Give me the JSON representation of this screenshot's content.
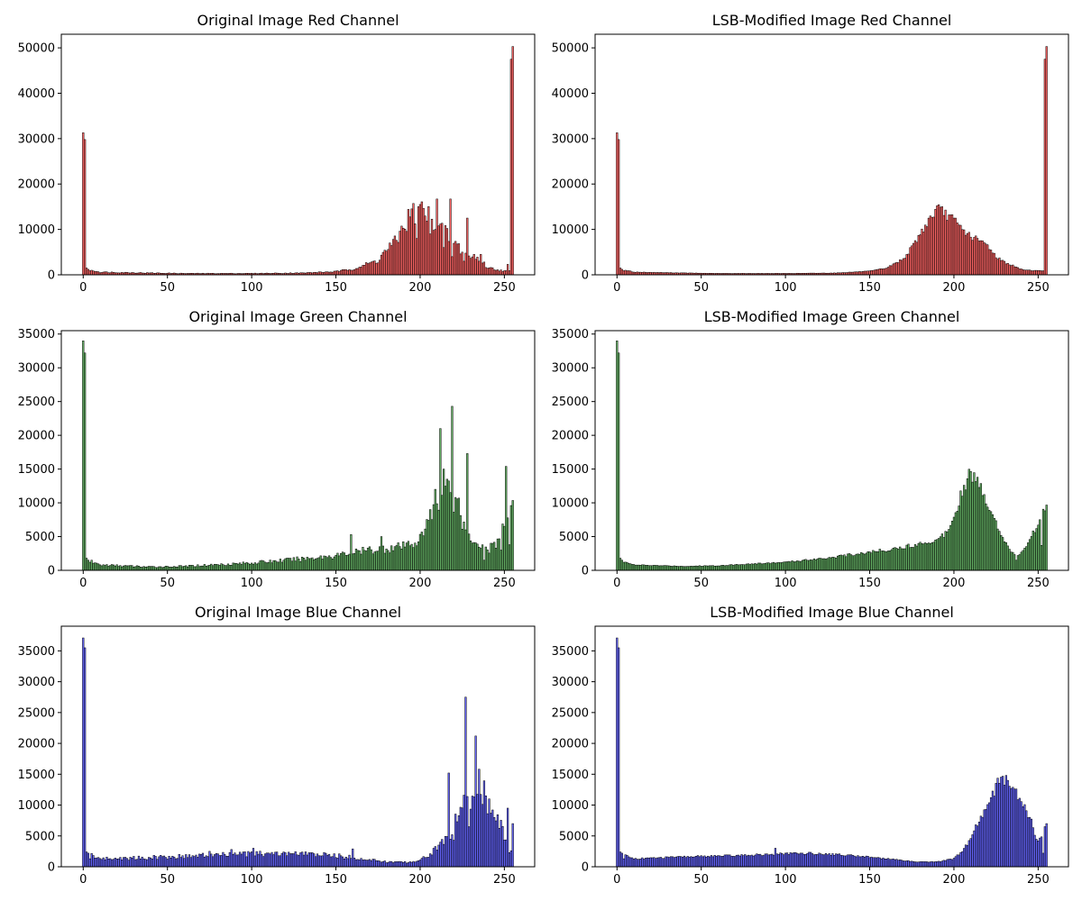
{
  "chart_data": [
    {
      "type": "bar",
      "title": "Original Image Red Channel",
      "channel": "red",
      "variant": "original",
      "color": "#ff0000",
      "xlim": [
        -13,
        268
      ],
      "ylim": [
        0,
        53000
      ],
      "xticks": [
        0,
        50,
        100,
        150,
        200,
        250
      ],
      "yticks": [
        0,
        10000,
        20000,
        30000,
        40000,
        50000
      ],
      "xlabel": "",
      "ylabel": "",
      "spikes": [
        [
          0,
          31300
        ],
        [
          1,
          29800
        ],
        [
          2,
          1500
        ],
        [
          3,
          1200
        ],
        [
          4,
          900
        ],
        [
          5,
          1000
        ],
        [
          254,
          47500
        ],
        [
          255,
          50300
        ]
      ],
      "anchors": [
        [
          3,
          1200
        ],
        [
          10,
          600
        ],
        [
          40,
          400
        ],
        [
          60,
          300
        ],
        [
          100,
          300
        ],
        [
          130,
          400
        ],
        [
          150,
          700
        ],
        [
          160,
          1300
        ],
        [
          170,
          2500
        ],
        [
          175,
          3200
        ],
        [
          180,
          5500
        ],
        [
          185,
          7000
        ],
        [
          190,
          10500
        ],
        [
          195,
          13500
        ],
        [
          200,
          14500
        ],
        [
          205,
          13000
        ],
        [
          210,
          11500
        ],
        [
          215,
          9000
        ],
        [
          220,
          7500
        ],
        [
          225,
          5000
        ],
        [
          230,
          3800
        ],
        [
          235,
          3500
        ],
        [
          240,
          1600
        ],
        [
          245,
          1200
        ],
        [
          250,
          800
        ],
        [
          253,
          900
        ]
      ],
      "overrides": [
        [
          200,
          15500
        ],
        [
          210,
          16700
        ],
        [
          218,
          16700
        ],
        [
          228,
          12500
        ],
        [
          206,
          9000
        ],
        [
          214,
          6000
        ],
        [
          219,
          4000
        ],
        [
          226,
          3000
        ],
        [
          198,
          8000
        ],
        [
          209,
          10000
        ],
        [
          232,
          4500
        ],
        [
          236,
          4500
        ],
        [
          252,
          2300
        ]
      ]
    },
    {
      "type": "bar",
      "title": "LSB-Modified Image Red Channel",
      "channel": "red",
      "variant": "lsb",
      "color": "#ff0000",
      "xlim": [
        -13,
        268
      ],
      "ylim": [
        0,
        53000
      ],
      "xticks": [
        0,
        50,
        100,
        150,
        200,
        250
      ],
      "yticks": [
        0,
        10000,
        20000,
        30000,
        40000,
        50000
      ],
      "xlabel": "",
      "ylabel": "",
      "spikes": [
        [
          0,
          31300
        ],
        [
          1,
          29800
        ],
        [
          2,
          1500
        ],
        [
          3,
          1200
        ],
        [
          4,
          900
        ],
        [
          5,
          1000
        ],
        [
          254,
          47500
        ],
        [
          255,
          50300
        ]
      ],
      "anchors": [
        [
          3,
          1200
        ],
        [
          10,
          600
        ],
        [
          40,
          400
        ],
        [
          60,
          300
        ],
        [
          100,
          300
        ],
        [
          130,
          400
        ],
        [
          150,
          800
        ],
        [
          160,
          1500
        ],
        [
          165,
          2500
        ],
        [
          170,
          3500
        ],
        [
          175,
          6000
        ],
        [
          180,
          9000
        ],
        [
          185,
          12000
        ],
        [
          190,
          14500
        ],
        [
          195,
          13500
        ],
        [
          200,
          12000
        ],
        [
          205,
          10000
        ],
        [
          210,
          8500
        ],
        [
          215,
          7500
        ],
        [
          220,
          6500
        ],
        [
          225,
          4000
        ],
        [
          230,
          2800
        ],
        [
          235,
          2000
        ],
        [
          240,
          1200
        ],
        [
          245,
          1000
        ],
        [
          250,
          900
        ],
        [
          253,
          900
        ]
      ],
      "overrides": []
    },
    {
      "type": "bar",
      "title": "Original Image Green Channel",
      "channel": "green",
      "variant": "original",
      "color": "#008000",
      "xlim": [
        -13,
        268
      ],
      "ylim": [
        0,
        35500
      ],
      "xticks": [
        0,
        50,
        100,
        150,
        200,
        250
      ],
      "yticks": [
        0,
        5000,
        10000,
        15000,
        20000,
        25000,
        30000,
        35000
      ],
      "xlabel": "",
      "ylabel": "",
      "spikes": [
        [
          0,
          34000
        ],
        [
          1,
          32200
        ],
        [
          2,
          1800
        ],
        [
          3,
          1500
        ],
        [
          4,
          1200
        ]
      ],
      "anchors": [
        [
          3,
          1500
        ],
        [
          10,
          800
        ],
        [
          40,
          500
        ],
        [
          60,
          600
        ],
        [
          100,
          1100
        ],
        [
          130,
          1700
        ],
        [
          150,
          2200
        ],
        [
          170,
          3000
        ],
        [
          190,
          3500
        ],
        [
          200,
          4500
        ],
        [
          205,
          7000
        ],
        [
          210,
          11000
        ],
        [
          215,
          13000
        ],
        [
          220,
          11000
        ],
        [
          225,
          7000
        ],
        [
          230,
          5000
        ],
        [
          235,
          4000
        ],
        [
          240,
          3000
        ],
        [
          245,
          4000
        ],
        [
          250,
          6500
        ],
        [
          255,
          10000
        ]
      ],
      "overrides": [
        [
          159,
          5300
        ],
        [
          177,
          5000
        ],
        [
          212,
          21000
        ],
        [
          219,
          24300
        ],
        [
          228,
          17300
        ],
        [
          251,
          15400
        ],
        [
          214,
          15000
        ],
        [
          216,
          13500
        ],
        [
          221,
          10800
        ],
        [
          223,
          10700
        ],
        [
          227,
          6000
        ],
        [
          209,
          12000
        ],
        [
          206,
          9000
        ],
        [
          253,
          3800
        ],
        [
          254,
          9600
        ],
        [
          238,
          1500
        ],
        [
          248,
          3000
        ]
      ]
    },
    {
      "type": "bar",
      "title": "LSB-Modified Image Green Channel",
      "channel": "green",
      "variant": "lsb",
      "color": "#008000",
      "xlim": [
        -13,
        268
      ],
      "ylim": [
        0,
        35500
      ],
      "xticks": [
        0,
        50,
        100,
        150,
        200,
        250
      ],
      "yticks": [
        0,
        5000,
        10000,
        15000,
        20000,
        25000,
        30000,
        35000
      ],
      "xlabel": "",
      "ylabel": "",
      "spikes": [
        [
          0,
          34000
        ],
        [
          1,
          32200
        ],
        [
          2,
          1800
        ],
        [
          3,
          1500
        ],
        [
          4,
          1200
        ]
      ],
      "anchors": [
        [
          3,
          1500
        ],
        [
          10,
          800
        ],
        [
          40,
          600
        ],
        [
          60,
          700
        ],
        [
          100,
          1200
        ],
        [
          130,
          2000
        ],
        [
          150,
          2700
        ],
        [
          170,
          3400
        ],
        [
          190,
          4500
        ],
        [
          195,
          5500
        ],
        [
          200,
          8000
        ],
        [
          205,
          12000
        ],
        [
          210,
          14500
        ],
        [
          215,
          12500
        ],
        [
          220,
          10000
        ],
        [
          225,
          7000
        ],
        [
          230,
          4500
        ],
        [
          235,
          2500
        ],
        [
          240,
          2500
        ],
        [
          245,
          4500
        ],
        [
          250,
          7000
        ],
        [
          255,
          10000
        ]
      ],
      "overrides": [
        [
          199,
          7300
        ],
        [
          237,
          1500
        ],
        [
          238,
          2200
        ],
        [
          252,
          3700
        ]
      ]
    },
    {
      "type": "bar",
      "title": "Original Image Blue Channel",
      "channel": "blue",
      "variant": "original",
      "color": "#0000ff",
      "xlim": [
        -13,
        268
      ],
      "ylim": [
        0,
        39000
      ],
      "xticks": [
        0,
        50,
        100,
        150,
        200,
        250
      ],
      "yticks": [
        0,
        5000,
        10000,
        15000,
        20000,
        25000,
        30000,
        35000
      ],
      "xlabel": "",
      "ylabel": "",
      "spikes": [
        [
          0,
          37100
        ],
        [
          1,
          35500
        ],
        [
          2,
          2400
        ],
        [
          3,
          2200
        ],
        [
          4,
          1300
        ]
      ],
      "anchors": [
        [
          3,
          2200
        ],
        [
          10,
          1300
        ],
        [
          30,
          1400
        ],
        [
          50,
          1600
        ],
        [
          70,
          1800
        ],
        [
          90,
          2000
        ],
        [
          110,
          2100
        ],
        [
          130,
          2100
        ],
        [
          150,
          1800
        ],
        [
          160,
          1500
        ],
        [
          170,
          1100
        ],
        [
          180,
          800
        ],
        [
          190,
          700
        ],
        [
          200,
          1000
        ],
        [
          205,
          2000
        ],
        [
          210,
          3000
        ],
        [
          215,
          4500
        ],
        [
          220,
          6500
        ],
        [
          225,
          9000
        ],
        [
          230,
          12000
        ],
        [
          235,
          13000
        ],
        [
          240,
          11000
        ],
        [
          245,
          8000
        ],
        [
          250,
          5000
        ],
        [
          255,
          6000
        ]
      ],
      "overrides": [
        [
          217,
          15200
        ],
        [
          227,
          27500
        ],
        [
          233,
          21200
        ],
        [
          160,
          2900
        ],
        [
          101,
          3000
        ],
        [
          88,
          2800
        ],
        [
          75,
          2500
        ],
        [
          220,
          4300
        ],
        [
          229,
          6500
        ],
        [
          239,
          11500
        ],
        [
          241,
          11000
        ],
        [
          244,
          8000
        ],
        [
          252,
          9500
        ],
        [
          253,
          2300
        ],
        [
          254,
          2600
        ],
        [
          255,
          7000
        ]
      ]
    },
    {
      "type": "bar",
      "title": "LSB-Modified Image Blue Channel",
      "channel": "blue",
      "variant": "lsb",
      "color": "#0000ff",
      "xlim": [
        -13,
        268
      ],
      "ylim": [
        0,
        39000
      ],
      "xticks": [
        0,
        50,
        100,
        150,
        200,
        250
      ],
      "yticks": [
        0,
        5000,
        10000,
        15000,
        20000,
        25000,
        30000,
        35000
      ],
      "xlabel": "",
      "ylabel": "",
      "spikes": [
        [
          0,
          37100
        ],
        [
          1,
          35500
        ],
        [
          2,
          2400
        ],
        [
          3,
          2200
        ],
        [
          4,
          1300
        ]
      ],
      "anchors": [
        [
          3,
          2200
        ],
        [
          10,
          1300
        ],
        [
          30,
          1500
        ],
        [
          50,
          1700
        ],
        [
          70,
          1800
        ],
        [
          90,
          2000
        ],
        [
          110,
          2200
        ],
        [
          130,
          2000
        ],
        [
          150,
          1600
        ],
        [
          160,
          1300
        ],
        [
          170,
          1000
        ],
        [
          180,
          800
        ],
        [
          190,
          800
        ],
        [
          200,
          1300
        ],
        [
          205,
          2500
        ],
        [
          210,
          4500
        ],
        [
          215,
          7500
        ],
        [
          220,
          10000
        ],
        [
          225,
          13000
        ],
        [
          230,
          14500
        ],
        [
          235,
          13000
        ],
        [
          240,
          11000
        ],
        [
          245,
          8000
        ],
        [
          250,
          4000
        ],
        [
          255,
          6500
        ]
      ],
      "overrides": [
        [
          94,
          3000
        ],
        [
          253,
          2200
        ],
        [
          254,
          6500
        ],
        [
          255,
          7000
        ]
      ]
    }
  ]
}
